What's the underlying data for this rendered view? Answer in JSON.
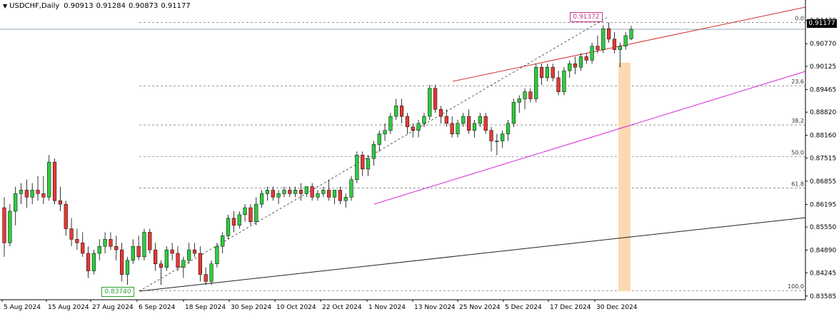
{
  "header": {
    "symbol_timeframe": "USDCHF,Daily",
    "open": "0.90913",
    "high": "0.91284",
    "low": "0.90873",
    "close": "0.91177"
  },
  "current_price_label": "0.91177",
  "swing_high_label": "0.91372",
  "swing_low_label": "0.83740",
  "fibonacci": {
    "levels": [
      "0.0",
      "23.6",
      "38.2",
      "50.0",
      "61.8",
      "100.0"
    ],
    "values": [
      0.91372,
      0.89571,
      0.88457,
      0.87556,
      0.86656,
      0.8374
    ]
  },
  "colors": {
    "bull": "#2ecc40",
    "bear": "#e53935",
    "red_trendline": "#d32f2f",
    "magenta_trendline": "#d62ad6",
    "black_trendline": "#222222",
    "highlight_zone": "#fbd9b4",
    "grid_dash": "#555555"
  },
  "chart_data": {
    "type": "candlestick",
    "title": "USDCHF,Daily",
    "y_tick_labels": [
      "0.91430",
      "0.90770",
      "0.90125",
      "0.89465",
      "0.88820",
      "0.88160",
      "0.87515",
      "0.86855",
      "0.86195",
      "0.85550",
      "0.84890",
      "0.84245",
      "0.83585"
    ],
    "x_tick_labels": [
      "5 Aug 2024",
      "15 Aug 2024",
      "27 Aug 2024",
      "6 Sep 2024",
      "18 Sep 2024",
      "30 Sep 2024",
      "10 Oct 2024",
      "22 Oct 2024",
      "1 Nov 2024",
      "13 Nov 2024",
      "25 Nov 2024",
      "5 Dec 2024",
      "17 Dec 2024",
      "30 Dec 2024"
    ],
    "ylim": [
      0.8352,
      0.9177
    ],
    "candles": [
      [
        0.861,
        0.864,
        0.847,
        0.851
      ],
      [
        0.851,
        0.862,
        0.85,
        0.86
      ],
      [
        0.86,
        0.867,
        0.856,
        0.865
      ],
      [
        0.865,
        0.868,
        0.862,
        0.866
      ],
      [
        0.866,
        0.869,
        0.861,
        0.864
      ],
      [
        0.864,
        0.868,
        0.862,
        0.866
      ],
      [
        0.866,
        0.87,
        0.863,
        0.865
      ],
      [
        0.865,
        0.87,
        0.862,
        0.864
      ],
      [
        0.864,
        0.876,
        0.863,
        0.874
      ],
      [
        0.874,
        0.875,
        0.862,
        0.863
      ],
      [
        0.863,
        0.867,
        0.86,
        0.862
      ],
      [
        0.862,
        0.863,
        0.853,
        0.855
      ],
      [
        0.855,
        0.858,
        0.85,
        0.852
      ],
      [
        0.852,
        0.855,
        0.849,
        0.851
      ],
      [
        0.851,
        0.854,
        0.847,
        0.848
      ],
      [
        0.848,
        0.85,
        0.841,
        0.843
      ],
      [
        0.843,
        0.849,
        0.842,
        0.848
      ],
      [
        0.848,
        0.852,
        0.846,
        0.85
      ],
      [
        0.85,
        0.854,
        0.848,
        0.852
      ],
      [
        0.852,
        0.854,
        0.849,
        0.85
      ],
      [
        0.85,
        0.853,
        0.846,
        0.849
      ],
      [
        0.849,
        0.851,
        0.84,
        0.842
      ],
      [
        0.842,
        0.847,
        0.839,
        0.846
      ],
      [
        0.846,
        0.852,
        0.845,
        0.85
      ],
      [
        0.85,
        0.853,
        0.846,
        0.847
      ],
      [
        0.847,
        0.855,
        0.846,
        0.854
      ],
      [
        0.854,
        0.855,
        0.848,
        0.849
      ],
      [
        0.849,
        0.851,
        0.843,
        0.845
      ],
      [
        0.845,
        0.846,
        0.839,
        0.844
      ],
      [
        0.844,
        0.85,
        0.843,
        0.849
      ],
      [
        0.849,
        0.851,
        0.846,
        0.848
      ],
      [
        0.848,
        0.85,
        0.843,
        0.844
      ],
      [
        0.844,
        0.847,
        0.841,
        0.846
      ],
      [
        0.846,
        0.851,
        0.845,
        0.849
      ],
      [
        0.849,
        0.851,
        0.847,
        0.848
      ],
      [
        0.848,
        0.85,
        0.84,
        0.842
      ],
      [
        0.842,
        0.844,
        0.839,
        0.84
      ],
      [
        0.84,
        0.846,
        0.839,
        0.845
      ],
      [
        0.845,
        0.851,
        0.844,
        0.85
      ],
      [
        0.85,
        0.854,
        0.848,
        0.853
      ],
      [
        0.853,
        0.859,
        0.852,
        0.858
      ],
      [
        0.858,
        0.86,
        0.854,
        0.856
      ],
      [
        0.856,
        0.86,
        0.855,
        0.859
      ],
      [
        0.859,
        0.862,
        0.857,
        0.861
      ],
      [
        0.861,
        0.862,
        0.856,
        0.857
      ],
      [
        0.857,
        0.864,
        0.856,
        0.862
      ],
      [
        0.862,
        0.866,
        0.861,
        0.865
      ],
      [
        0.865,
        0.867,
        0.863,
        0.866
      ],
      [
        0.866,
        0.867,
        0.863,
        0.864
      ],
      [
        0.864,
        0.866,
        0.862,
        0.865
      ],
      [
        0.865,
        0.867,
        0.864,
        0.866
      ],
      [
        0.866,
        0.867,
        0.864,
        0.865
      ],
      [
        0.865,
        0.867,
        0.864,
        0.866
      ],
      [
        0.866,
        0.868,
        0.863,
        0.865
      ],
      [
        0.865,
        0.867,
        0.864,
        0.867
      ],
      [
        0.867,
        0.868,
        0.863,
        0.864
      ],
      [
        0.864,
        0.866,
        0.863,
        0.865
      ],
      [
        0.865,
        0.867,
        0.864,
        0.866
      ],
      [
        0.866,
        0.869,
        0.863,
        0.864
      ],
      [
        0.864,
        0.866,
        0.862,
        0.866
      ],
      [
        0.866,
        0.867,
        0.862,
        0.863
      ],
      [
        0.863,
        0.865,
        0.861,
        0.864
      ],
      [
        0.864,
        0.87,
        0.863,
        0.869
      ],
      [
        0.869,
        0.877,
        0.868,
        0.876
      ],
      [
        0.876,
        0.877,
        0.87,
        0.872
      ],
      [
        0.872,
        0.876,
        0.87,
        0.875
      ],
      [
        0.875,
        0.88,
        0.873,
        0.879
      ],
      [
        0.879,
        0.883,
        0.877,
        0.882
      ],
      [
        0.882,
        0.885,
        0.88,
        0.883
      ],
      [
        0.883,
        0.888,
        0.882,
        0.887
      ],
      [
        0.887,
        0.892,
        0.886,
        0.89
      ],
      [
        0.89,
        0.892,
        0.885,
        0.887
      ],
      [
        0.887,
        0.888,
        0.882,
        0.884
      ],
      [
        0.884,
        0.885,
        0.881,
        0.883
      ],
      [
        0.883,
        0.886,
        0.881,
        0.885
      ],
      [
        0.885,
        0.888,
        0.884,
        0.887
      ],
      [
        0.887,
        0.896,
        0.886,
        0.895
      ],
      [
        0.895,
        0.896,
        0.888,
        0.889
      ],
      [
        0.889,
        0.89,
        0.885,
        0.887
      ],
      [
        0.887,
        0.889,
        0.884,
        0.885
      ],
      [
        0.885,
        0.887,
        0.881,
        0.882
      ],
      [
        0.882,
        0.886,
        0.881,
        0.885
      ],
      [
        0.885,
        0.888,
        0.884,
        0.887
      ],
      [
        0.887,
        0.889,
        0.882,
        0.883
      ],
      [
        0.883,
        0.886,
        0.881,
        0.885
      ],
      [
        0.885,
        0.888,
        0.884,
        0.887
      ],
      [
        0.887,
        0.888,
        0.882,
        0.883
      ],
      [
        0.883,
        0.884,
        0.877,
        0.88
      ],
      [
        0.88,
        0.882,
        0.876,
        0.88
      ],
      [
        0.88,
        0.883,
        0.878,
        0.882
      ],
      [
        0.882,
        0.886,
        0.88,
        0.885
      ],
      [
        0.885,
        0.892,
        0.884,
        0.891
      ],
      [
        0.891,
        0.893,
        0.888,
        0.892
      ],
      [
        0.892,
        0.895,
        0.889,
        0.894
      ],
      [
        0.894,
        0.895,
        0.891,
        0.892
      ],
      [
        0.892,
        0.902,
        0.891,
        0.901
      ],
      [
        0.901,
        0.902,
        0.896,
        0.898
      ],
      [
        0.898,
        0.902,
        0.897,
        0.901
      ],
      [
        0.901,
        0.902,
        0.897,
        0.898
      ],
      [
        0.898,
        0.9,
        0.893,
        0.894
      ],
      [
        0.894,
        0.901,
        0.893,
        0.9
      ],
      [
        0.9,
        0.903,
        0.898,
        0.902
      ],
      [
        0.902,
        0.904,
        0.899,
        0.901
      ],
      [
        0.901,
        0.905,
        0.9,
        0.904
      ],
      [
        0.904,
        0.905,
        0.902,
        0.903
      ],
      [
        0.903,
        0.908,
        0.902,
        0.907
      ],
      [
        0.907,
        0.91,
        0.905,
        0.906
      ],
      [
        0.906,
        0.913,
        0.905,
        0.912
      ],
      [
        0.912,
        0.9137,
        0.908,
        0.909
      ],
      [
        0.909,
        0.911,
        0.905,
        0.906
      ],
      [
        0.906,
        0.908,
        0.901,
        0.907
      ],
      [
        0.907,
        0.911,
        0.906,
        0.91
      ],
      [
        0.9091,
        0.9128,
        0.9087,
        0.9118
      ]
    ],
    "fib_retracement": {
      "from": 0.8374,
      "to": 0.91372
    }
  }
}
